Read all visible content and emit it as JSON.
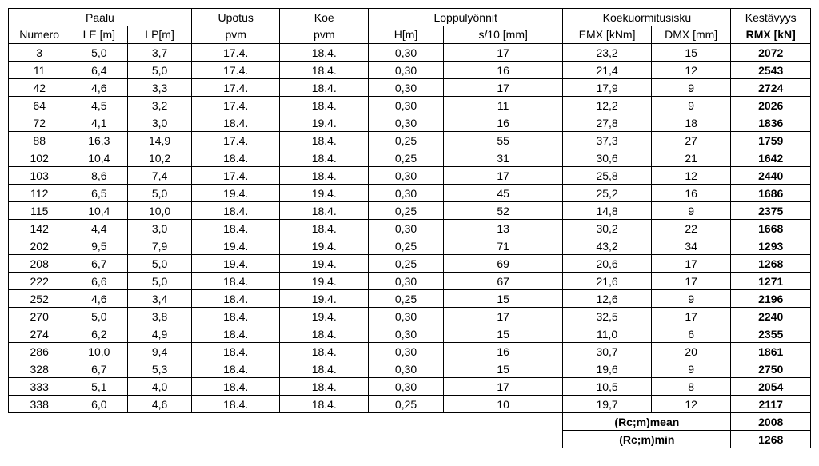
{
  "headers": {
    "group": {
      "paalu": "Paalu",
      "upotus": "Upotus",
      "koe": "Koe",
      "loppu": "Loppulyönnit",
      "koekuorm": "Koekuormitusisku",
      "kest": "Kestävyys"
    },
    "sub": {
      "numero": "Numero",
      "le": "LE [m]",
      "lp": "LP[m]",
      "upvm": "pvm",
      "kpvm": "pvm",
      "h": "H[m]",
      "s10": "s/10 [mm]",
      "emx": "EMX [kNm]",
      "dmx": "DMX [mm]",
      "rmx": "RMX [kN]"
    }
  },
  "rows": [
    {
      "num": "3",
      "le": "5,0",
      "lp": "3,7",
      "upvm": "17.4.",
      "kpvm": "18.4.",
      "h": "0,30",
      "s10": "17",
      "emx": "23,2",
      "dmx": "15",
      "rmx": "2072"
    },
    {
      "num": "11",
      "le": "6,4",
      "lp": "5,0",
      "upvm": "17.4.",
      "kpvm": "18.4.",
      "h": "0,30",
      "s10": "16",
      "emx": "21,4",
      "dmx": "12",
      "rmx": "2543"
    },
    {
      "num": "42",
      "le": "4,6",
      "lp": "3,3",
      "upvm": "17.4.",
      "kpvm": "18.4.",
      "h": "0,30",
      "s10": "17",
      "emx": "17,9",
      "dmx": "9",
      "rmx": "2724"
    },
    {
      "num": "64",
      "le": "4,5",
      "lp": "3,2",
      "upvm": "17.4.",
      "kpvm": "18.4.",
      "h": "0,30",
      "s10": "11",
      "emx": "12,2",
      "dmx": "9",
      "rmx": "2026"
    },
    {
      "num": "72",
      "le": "4,1",
      "lp": "3,0",
      "upvm": "18.4.",
      "kpvm": "19.4.",
      "h": "0,30",
      "s10": "16",
      "emx": "27,8",
      "dmx": "18",
      "rmx": "1836"
    },
    {
      "num": "88",
      "le": "16,3",
      "lp": "14,9",
      "upvm": "17.4.",
      "kpvm": "18.4.",
      "h": "0,25",
      "s10": "55",
      "emx": "37,3",
      "dmx": "27",
      "rmx": "1759"
    },
    {
      "num": "102",
      "le": "10,4",
      "lp": "10,2",
      "upvm": "18.4.",
      "kpvm": "18.4.",
      "h": "0,25",
      "s10": "31",
      "emx": "30,6",
      "dmx": "21",
      "rmx": "1642"
    },
    {
      "num": "103",
      "le": "8,6",
      "lp": "7,4",
      "upvm": "17.4.",
      "kpvm": "18.4.",
      "h": "0,30",
      "s10": "17",
      "emx": "25,8",
      "dmx": "12",
      "rmx": "2440"
    },
    {
      "num": "112",
      "le": "6,5",
      "lp": "5,0",
      "upvm": "19.4.",
      "kpvm": "19.4.",
      "h": "0,30",
      "s10": "45",
      "emx": "25,2",
      "dmx": "16",
      "rmx": "1686"
    },
    {
      "num": "115",
      "le": "10,4",
      "lp": "10,0",
      "upvm": "18.4.",
      "kpvm": "18.4.",
      "h": "0,25",
      "s10": "52",
      "emx": "14,8",
      "dmx": "9",
      "rmx": "2375"
    },
    {
      "num": "142",
      "le": "4,4",
      "lp": "3,0",
      "upvm": "18.4.",
      "kpvm": "18.4.",
      "h": "0,30",
      "s10": "13",
      "emx": "30,2",
      "dmx": "22",
      "rmx": "1668"
    },
    {
      "num": "202",
      "le": "9,5",
      "lp": "7,9",
      "upvm": "19.4.",
      "kpvm": "19.4.",
      "h": "0,25",
      "s10": "71",
      "emx": "43,2",
      "dmx": "34",
      "rmx": "1293"
    },
    {
      "num": "208",
      "le": "6,7",
      "lp": "5,0",
      "upvm": "19.4.",
      "kpvm": "19.4.",
      "h": "0,25",
      "s10": "69",
      "emx": "20,6",
      "dmx": "17",
      "rmx": "1268"
    },
    {
      "num": "222",
      "le": "6,6",
      "lp": "5,0",
      "upvm": "18.4.",
      "kpvm": "19.4.",
      "h": "0,30",
      "s10": "67",
      "emx": "21,6",
      "dmx": "17",
      "rmx": "1271"
    },
    {
      "num": "252",
      "le": "4,6",
      "lp": "3,4",
      "upvm": "18.4.",
      "kpvm": "19.4.",
      "h": "0,25",
      "s10": "15",
      "emx": "12,6",
      "dmx": "9",
      "rmx": "2196"
    },
    {
      "num": "270",
      "le": "5,0",
      "lp": "3,8",
      "upvm": "18.4.",
      "kpvm": "19.4.",
      "h": "0,30",
      "s10": "17",
      "emx": "32,5",
      "dmx": "17",
      "rmx": "2240"
    },
    {
      "num": "274",
      "le": "6,2",
      "lp": "4,9",
      "upvm": "18.4.",
      "kpvm": "18.4.",
      "h": "0,30",
      "s10": "15",
      "emx": "11,0",
      "dmx": "6",
      "rmx": "2355"
    },
    {
      "num": "286",
      "le": "10,0",
      "lp": "9,4",
      "upvm": "18.4.",
      "kpvm": "18.4.",
      "h": "0,30",
      "s10": "16",
      "emx": "30,7",
      "dmx": "20",
      "rmx": "1861"
    },
    {
      "num": "328",
      "le": "6,7",
      "lp": "5,3",
      "upvm": "18.4.",
      "kpvm": "18.4.",
      "h": "0,30",
      "s10": "15",
      "emx": "19,6",
      "dmx": "9",
      "rmx": "2750"
    },
    {
      "num": "333",
      "le": "5,1",
      "lp": "4,0",
      "upvm": "18.4.",
      "kpvm": "18.4.",
      "h": "0,30",
      "s10": "17",
      "emx": "10,5",
      "dmx": "8",
      "rmx": "2054"
    },
    {
      "num": "338",
      "le": "6,0",
      "lp": "4,6",
      "upvm": "18.4.",
      "kpvm": "18.4.",
      "h": "0,25",
      "s10": "10",
      "emx": "19,7",
      "dmx": "12",
      "rmx": "2117"
    }
  ],
  "summary": {
    "mean_label": "(Rc;m)mean",
    "mean_value": "2008",
    "min_label": "(Rc;m)min",
    "min_value": "1268"
  }
}
